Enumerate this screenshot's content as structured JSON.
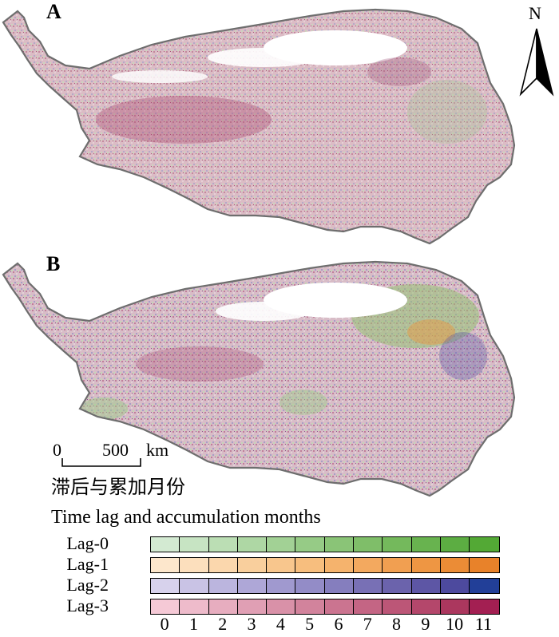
{
  "panels": [
    {
      "letter": "A"
    },
    {
      "letter": "B"
    }
  ],
  "north_arrow": {
    "label": "N",
    "icon": "north-arrow-icon"
  },
  "scale_bar": {
    "start": "0",
    "end": "500",
    "unit": "km"
  },
  "legend": {
    "title_zh": "滞后与累加月份",
    "title_en": "Time lag and accumulation months",
    "rows": [
      {
        "label": "Lag-0",
        "colors": [
          "#d3ead2",
          "#c7e4c3",
          "#bbdeb4",
          "#aed7a4",
          "#a2d195",
          "#96cb86",
          "#8ac477",
          "#7fbe69",
          "#74b95c",
          "#68b34f",
          "#5cad42",
          "#53a935"
        ]
      },
      {
        "label": "Lag-1",
        "colors": [
          "#fde7cc",
          "#fcdfbd",
          "#fbd7ad",
          "#f9cf9d",
          "#f8c68d",
          "#f7be7e",
          "#f5b36d",
          "#f3a95f",
          "#f19f51",
          "#ee9643",
          "#eb8c36",
          "#e8822a"
        ]
      },
      {
        "label": "Lag-2",
        "colors": [
          "#d7d2ec",
          "#c9c3e5",
          "#bbb5de",
          "#aea7d7",
          "#a099cf",
          "#938cc7",
          "#857ebe",
          "#7870b5",
          "#6b63ac",
          "#5d56a5",
          "#4d4a9e",
          "#223f98"
        ]
      },
      {
        "label": "Lag-3",
        "colors": [
          "#f5c9d6",
          "#eebbcb",
          "#e7adbf",
          "#e09fb4",
          "#d991a8",
          "#d2839c",
          "#cb7490",
          "#c46584",
          "#bc5677",
          "#b4476b",
          "#ab375e",
          "#a31f52"
        ]
      }
    ],
    "months": [
      "0",
      "1",
      "2",
      "3",
      "4",
      "5",
      "6",
      "7",
      "8",
      "9",
      "10",
      "11"
    ]
  },
  "colors": {
    "outline": "#6e6e6e",
    "no_data": "#ffffff"
  }
}
